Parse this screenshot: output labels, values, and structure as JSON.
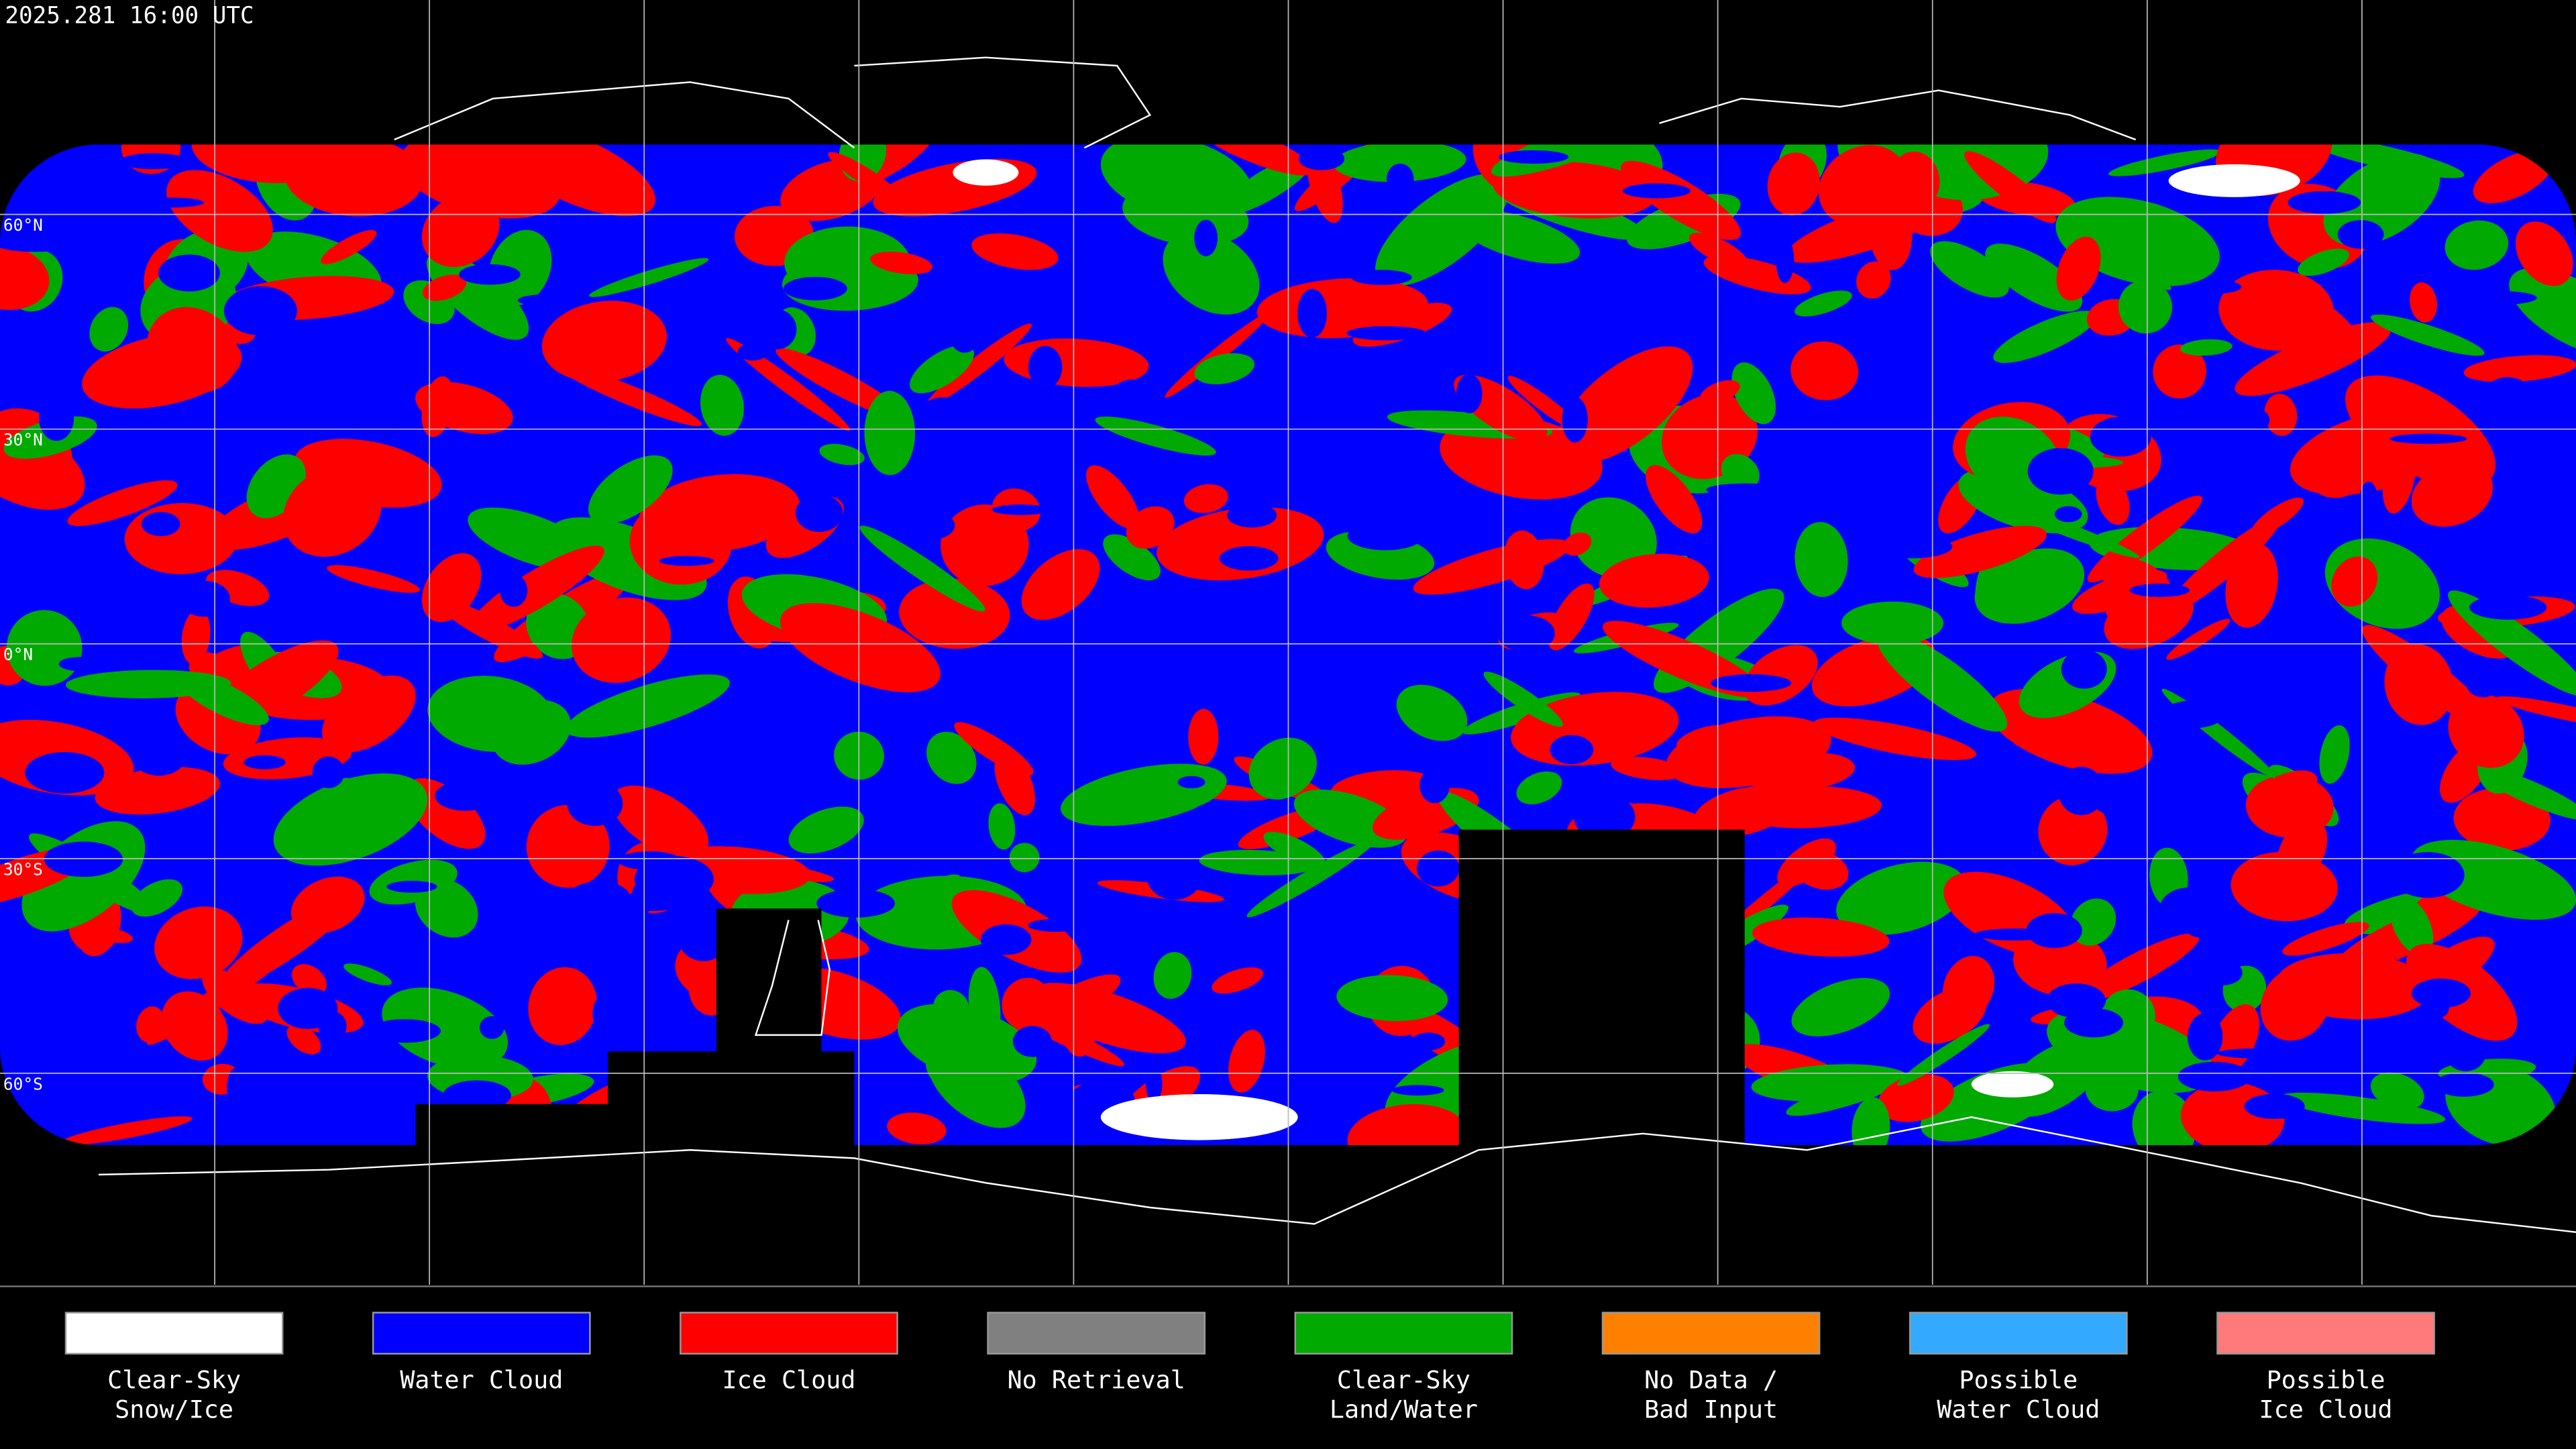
{
  "header": {
    "timestamp": "2025.281 16:00 UTC"
  },
  "grid": {
    "lat_labels": [
      "60°N",
      "30°N",
      "0°N",
      "30°S",
      "60°S"
    ]
  },
  "legend": {
    "items": [
      {
        "lines": [
          "Clear-Sky",
          "Snow/Ice"
        ],
        "color": "#ffffff"
      },
      {
        "lines": [
          "Water Cloud"
        ],
        "color": "#0000ff"
      },
      {
        "lines": [
          "Ice Cloud"
        ],
        "color": "#ff0000"
      },
      {
        "lines": [
          "No Retrieval"
        ],
        "color": "#808080"
      },
      {
        "lines": [
          "Clear-Sky",
          "Land/Water"
        ],
        "color": "#00aa00"
      },
      {
        "lines": [
          "No Data /",
          "Bad Input"
        ],
        "color": "#ff8000"
      },
      {
        "lines": [
          "Possible",
          "Water Cloud"
        ],
        "color": "#33aaff"
      },
      {
        "lines": [
          "Possible",
          "Ice Cloud"
        ],
        "color": "#ff7a7a"
      }
    ]
  }
}
